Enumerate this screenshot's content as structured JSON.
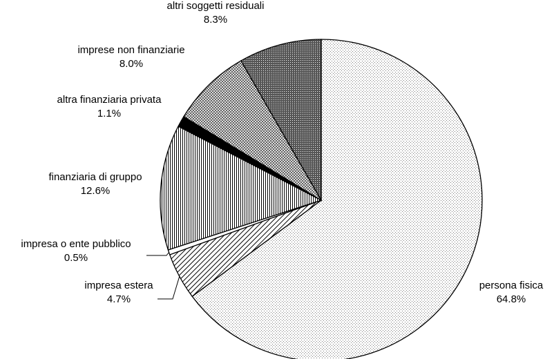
{
  "chart_data": {
    "type": "pie",
    "title": "",
    "slices": [
      {
        "label": "persona fisica",
        "value": 64.8,
        "value_label": "64.8%",
        "pattern": "fine-dots"
      },
      {
        "label": "impresa estera",
        "value": 4.7,
        "value_label": "4.7%",
        "pattern": "diagonal-lines"
      },
      {
        "label": "impresa o ente pubblico",
        "value": 0.5,
        "value_label": "0.5%",
        "pattern": "white"
      },
      {
        "label": "finanziaria di gruppo",
        "value": 12.6,
        "value_label": "12.6%",
        "pattern": "vertical-lines"
      },
      {
        "label": "altra finanziaria privata",
        "value": 1.1,
        "value_label": "1.1%",
        "pattern": "solid-black"
      },
      {
        "label": "imprese non finanziarie",
        "value": 8.0,
        "value_label": "8.0%",
        "pattern": "crosshatch"
      },
      {
        "label": "altri soggetti residuali",
        "value": 8.3,
        "value_label": "8.3%",
        "pattern": "dense-dots"
      }
    ],
    "start_angle_deg": 0,
    "direction": "clockwise",
    "legend": "none",
    "labels": "outside"
  }
}
